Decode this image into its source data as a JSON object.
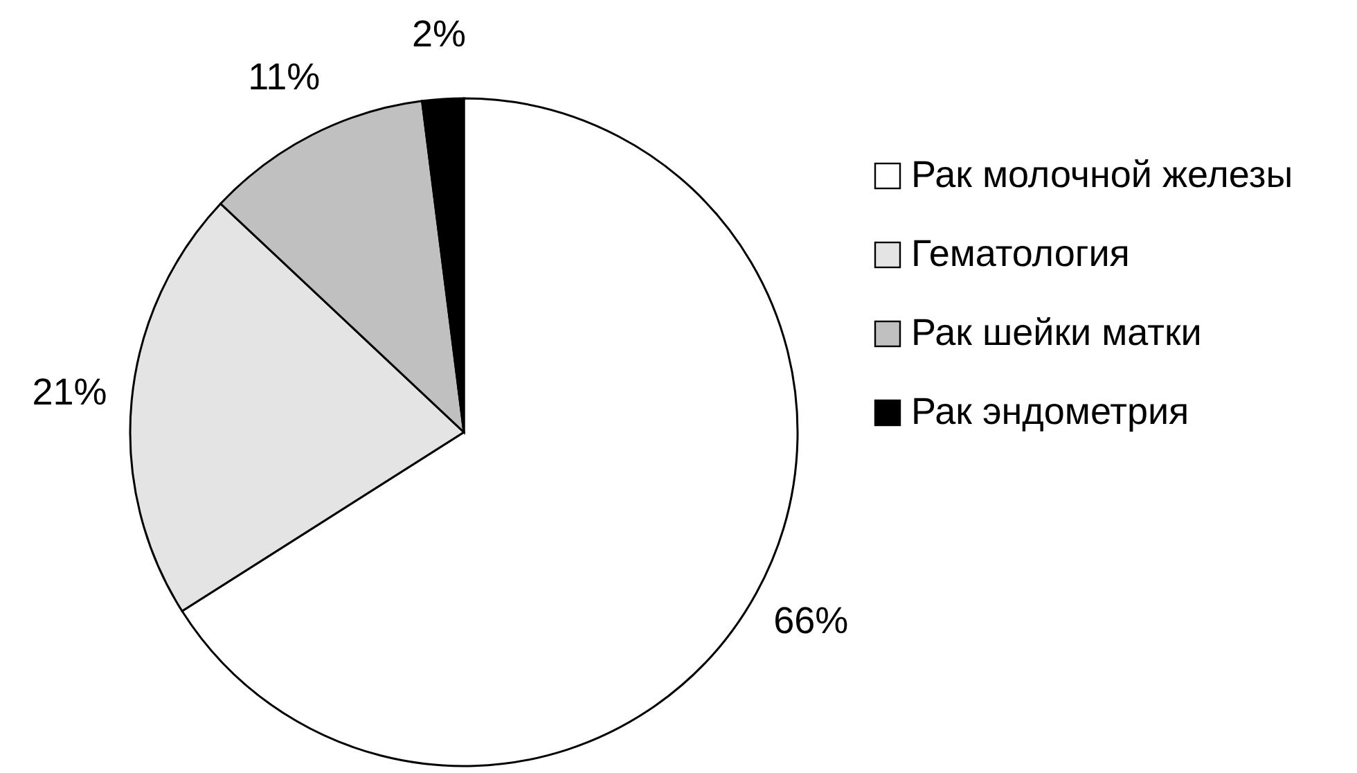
{
  "chart_data": {
    "type": "pie",
    "categories": [
      "Рак молочной железы",
      "Гематология",
      "Рак шейки матки",
      "Рак эндометрия"
    ],
    "values": [
      66,
      21,
      11,
      2
    ],
    "colors": [
      "#ffffff",
      "#e4e4e4",
      "#c0c0c0",
      "#000000"
    ],
    "value_labels": [
      "66%",
      "21%",
      "11%",
      "2%"
    ],
    "legend": "right"
  }
}
